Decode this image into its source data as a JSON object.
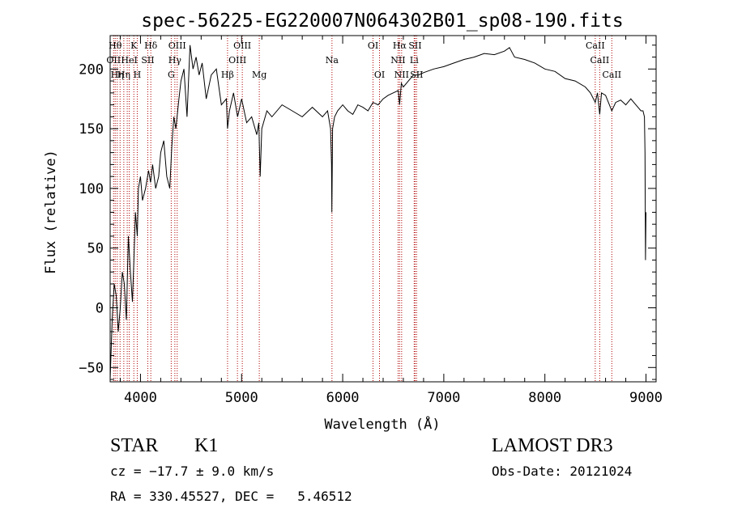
{
  "chart_data": {
    "type": "line",
    "title": "spec-56225-EG220007N064302B01_sp08-190.fits",
    "xlabel": "Wavelength (Å)",
    "ylabel": "Flux (relative)",
    "xlim": [
      3700,
      9100
    ],
    "ylim": [
      -62,
      228
    ],
    "xticks": [
      4000,
      5000,
      6000,
      7000,
      8000,
      9000
    ],
    "yticks": [
      -50,
      0,
      50,
      100,
      150,
      200
    ],
    "grid": false,
    "line_color": "#000000",
    "line_marker_color": "#b00000",
    "series": [
      {
        "x": [
          3700,
          3720,
          3740,
          3760,
          3780,
          3800,
          3820,
          3840,
          3860,
          3880,
          3900,
          3920,
          3935,
          3950,
          3968,
          3980,
          4000,
          4020,
          4050,
          4080,
          4100,
          4120,
          4150,
          4180,
          4200,
          4230,
          4260,
          4290,
          4310,
          4330,
          4350,
          4380,
          4400,
          4430,
          4460,
          4490,
          4520,
          4550,
          4580,
          4610,
          4650,
          4700,
          4750,
          4800,
          4850,
          4861,
          4880,
          4920,
          4960,
          5000,
          5050,
          5100,
          5150,
          5170,
          5184,
          5200,
          5250,
          5300,
          5400,
          5500,
          5600,
          5700,
          5800,
          5850,
          5880,
          5890,
          5893,
          5896,
          5900,
          5920,
          5950,
          6000,
          6050,
          6100,
          6150,
          6200,
          6250,
          6300,
          6350,
          6400,
          6450,
          6500,
          6550,
          6563,
          6580,
          6600,
          6650,
          6700,
          6750,
          6800,
          6900,
          7000,
          7100,
          7200,
          7300,
          7400,
          7500,
          7600,
          7650,
          7700,
          7800,
          7900,
          8000,
          8100,
          8200,
          8300,
          8400,
          8450,
          8498,
          8520,
          8542,
          8560,
          8600,
          8662,
          8700,
          8750,
          8800,
          8850,
          8900,
          8950,
          8970,
          8985,
          8990,
          8995,
          9000
        ],
        "y": [
          -60,
          -10,
          20,
          10,
          -20,
          0,
          30,
          20,
          -10,
          60,
          30,
          5,
          40,
          80,
          60,
          100,
          110,
          90,
          100,
          115,
          105,
          120,
          100,
          110,
          130,
          140,
          110,
          100,
          135,
          160,
          150,
          175,
          190,
          200,
          160,
          220,
          200,
          210,
          195,
          205,
          175,
          195,
          200,
          170,
          175,
          150,
          165,
          180,
          160,
          175,
          155,
          160,
          145,
          155,
          110,
          150,
          165,
          160,
          170,
          165,
          160,
          168,
          160,
          165,
          150,
          120,
          80,
          110,
          150,
          160,
          165,
          170,
          165,
          162,
          170,
          168,
          165,
          172,
          170,
          175,
          178,
          180,
          182,
          170,
          188,
          185,
          190,
          195,
          195,
          197,
          200,
          202,
          205,
          208,
          210,
          213,
          212,
          215,
          218,
          210,
          208,
          205,
          200,
          198,
          192,
          190,
          185,
          180,
          172,
          180,
          162,
          180,
          178,
          165,
          172,
          174,
          170,
          175,
          170,
          165,
          165,
          160,
          130,
          40,
          80
        ]
      }
    ],
    "lines": [
      {
        "x": 3734,
        "label": "OII",
        "row": 1
      },
      {
        "x": 3750,
        "label": "Hθ",
        "row": 0
      },
      {
        "x": 3770,
        "label": "Hη",
        "row": 2
      },
      {
        "x": 3798,
        "label": "",
        "row": -1
      },
      {
        "x": 3835,
        "label": "Hη",
        "row": 2
      },
      {
        "x": 3869,
        "label": "",
        "row": -1
      },
      {
        "x": 3889,
        "label": "HeI",
        "row": 1
      },
      {
        "x": 3934,
        "label": "K",
        "row": 0
      },
      {
        "x": 3968,
        "label": "H",
        "row": 2
      },
      {
        "x": 4072,
        "label": "SII",
        "row": 1
      },
      {
        "x": 4102,
        "label": "Hδ",
        "row": 0
      },
      {
        "x": 4304,
        "label": "G",
        "row": 2
      },
      {
        "x": 4340,
        "label": "Hγ",
        "row": 1
      },
      {
        "x": 4363,
        "label": "OIII",
        "row": 0
      },
      {
        "x": 4861,
        "label": "Hβ",
        "row": 2
      },
      {
        "x": 4959,
        "label": "OIII",
        "row": 1
      },
      {
        "x": 5007,
        "label": "OIII",
        "row": 0
      },
      {
        "x": 5175,
        "label": "Mg",
        "row": 2
      },
      {
        "x": 5894,
        "label": "Na",
        "row": 1
      },
      {
        "x": 6300,
        "label": "OI",
        "row": 0
      },
      {
        "x": 6364,
        "label": "OI",
        "row": 2
      },
      {
        "x": 6548,
        "label": "NII",
        "row": 1
      },
      {
        "x": 6563,
        "label": "Hα",
        "row": 0
      },
      {
        "x": 6583,
        "label": "NII",
        "row": 2
      },
      {
        "x": 6707,
        "label": "Li",
        "row": 1
      },
      {
        "x": 6716,
        "label": "SII",
        "row": 0
      },
      {
        "x": 6731,
        "label": "SII",
        "row": 2
      },
      {
        "x": 8498,
        "label": "CaII",
        "row": 0
      },
      {
        "x": 8542,
        "label": "CaII",
        "row": 1
      },
      {
        "x": 8662,
        "label": "CaII",
        "row": 2
      }
    ]
  },
  "info": {
    "class": "STAR",
    "subclass": "K1",
    "cz": "cz = −17.7 ± 9.0 km/s",
    "coords": "RA = 330.45527, DEC =   5.46512",
    "survey": "LAMOST DR3",
    "obs_date": "Obs-Date: 20121024"
  }
}
